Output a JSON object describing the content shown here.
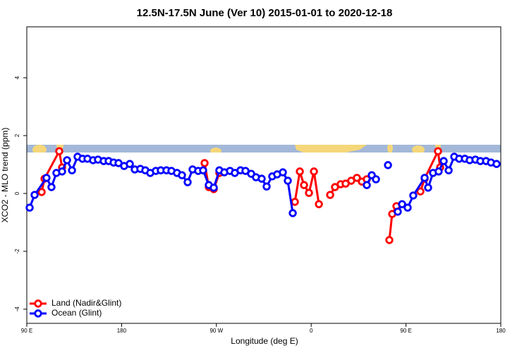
{
  "chart_data": {
    "type": "line",
    "title": "12.5N-17.5N June (Ver 10)   2015-01-01 to 2020-12-18",
    "x_label": "Longitude (deg E)",
    "y_label": "XCO2 - MLO trend (ppm)",
    "xlim": [
      90,
      540
    ],
    "xticks": [
      {
        "value": 90,
        "label": "90 E"
      },
      180,
      {
        "value": 270,
        "label": "90 W"
      },
      {
        "value": 360,
        "label": "0"
      },
      {
        "value": 450,
        "label": "90 E"
      },
      180
    ],
    "ylim": [
      -4.49,
      5.76
    ],
    "yticks": [
      -4,
      -2,
      0,
      2,
      4
    ],
    "legend": "bottomleft",
    "series": [
      {
        "name": "Land (Nadir&Glint)",
        "color": "#ff0000",
        "x": [
          104.1,
          106.8,
          120.8,
          123.5,
          200,
          258.8,
          262.8,
          267.5,
          272.8,
          300,
          344.5,
          349.2,
          353.2,
          357.9,
          362.6,
          367.3,
          372,
          378.0,
          382.6,
          388.0,
          392.7,
          398.0,
          403.4,
          408.1,
          412.8,
          420,
          434.2,
          436.9,
          440.9,
          450,
          463.7,
          467.7,
          480.4,
          482.4
        ],
        "values": [
          0.05,
          0.51,
          1.46,
          0.9,
          null,
          1.05,
          0.22,
          0.15,
          0.71,
          null,
          -0.29,
          0.76,
          0.29,
          0.02,
          0.76,
          -0.37,
          null,
          -0.05,
          0.22,
          0.32,
          0.34,
          0.44,
          0.54,
          0.41,
          0.49,
          null,
          -1.61,
          -0.71,
          -0.44,
          null,
          0.07,
          0.51,
          1.46,
          0.9
        ]
      },
      {
        "name": "Ocean (Glint)",
        "color": "#0000ff",
        "x": [
          92.7,
          97.4,
          108.7,
          113.4,
          118.1,
          123.5,
          128.2,
          132.9,
          138.2,
          142.9,
          147.6,
          152.9,
          157.6,
          163.0,
          167.7,
          172.4,
          177.1,
          182.4,
          187.8,
          192.5,
          197.8,
          202.5,
          207.2,
          212.5,
          217.2,
          222.6,
          227.3,
          232.6,
          237.3,
          242.7,
          247.4,
          252.7,
          257.4,
          262.8,
          267.5,
          272.8,
          277.5,
          282.9,
          287.5,
          292.9,
          297.6,
          303.0,
          307.6,
          313.0,
          317.7,
          323.0,
          327.7,
          333.1,
          337.8,
          342.5,
          380,
          412.8,
          417.5,
          421.5,
          428,
          432.9,
          438,
          442.2,
          446.3,
          451.6,
          456.9,
          467.7,
          471.0,
          475.7,
          481.0,
          485.8,
          490.5,
          495.8,
          500.5,
          505.9,
          510.5,
          515.9,
          520.6,
          526.0,
          530.7,
          536.0
        ],
        "values": [
          -0.49,
          -0.05,
          0.54,
          0.22,
          0.71,
          0.76,
          1.15,
          0.8,
          1.27,
          1.2,
          1.2,
          1.15,
          1.17,
          1.12,
          1.12,
          1.07,
          1.05,
          0.95,
          1.02,
          0.83,
          0.85,
          0.8,
          0.71,
          0.78,
          0.8,
          0.8,
          0.78,
          0.71,
          0.63,
          0.39,
          0.83,
          0.78,
          0.8,
          0.29,
          0.2,
          0.8,
          0.73,
          0.78,
          0.71,
          0.8,
          0.78,
          0.68,
          0.56,
          0.51,
          0.24,
          0.59,
          0.66,
          0.73,
          0.44,
          -0.68,
          null,
          0.29,
          0.63,
          0.49,
          null,
          0.98,
          null,
          -0.63,
          -0.37,
          -0.49,
          -0.07,
          0.54,
          0.2,
          0.71,
          0.76,
          1.12,
          0.8,
          1.27,
          1.2,
          1.2,
          1.15,
          1.17,
          1.12,
          1.12,
          1.07,
          1.02
        ]
      }
    ]
  }
}
